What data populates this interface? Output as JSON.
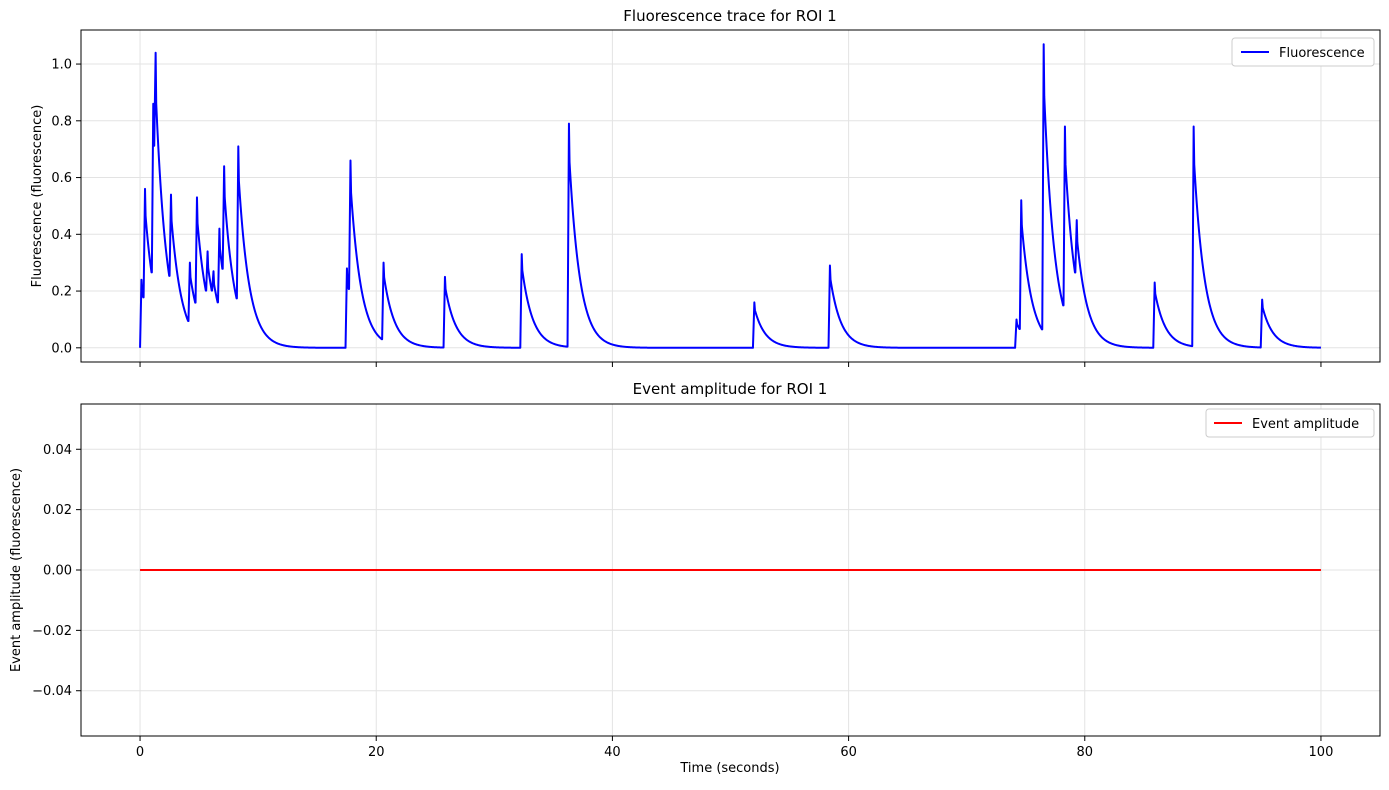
{
  "chart_data": [
    {
      "type": "line",
      "title": "Fluorescence trace for ROI 1",
      "ylabel": "Fluorescence (fluorescence)",
      "xlabel": "",
      "xlim": [
        -5,
        105
      ],
      "ylim": [
        -0.05,
        1.12
      ],
      "xticks": [
        0,
        20,
        40,
        60,
        80,
        100
      ],
      "xtick_labels_visible": false,
      "yticks": [
        0.0,
        0.2,
        0.4,
        0.6,
        0.8,
        1.0
      ],
      "ytick_labels": [
        "0.0",
        "0.2",
        "0.4",
        "0.6",
        "0.8",
        "1.0"
      ],
      "grid": true,
      "legend": "top-right",
      "decay_tau_seconds": 0.9,
      "series": [
        {
          "name": "Fluorescence",
          "color": "#0000ff",
          "events": [
            {
              "t": 0.0,
              "peak": 0.24
            },
            {
              "t": 0.3,
              "peak": 0.56
            },
            {
              "t": 1.0,
              "peak": 0.86
            },
            {
              "t": 1.2,
              "peak": 1.04
            },
            {
              "t": 2.5,
              "peak": 0.54
            },
            {
              "t": 4.1,
              "peak": 0.3
            },
            {
              "t": 4.7,
              "peak": 0.53
            },
            {
              "t": 5.6,
              "peak": 0.34
            },
            {
              "t": 6.1,
              "peak": 0.27
            },
            {
              "t": 6.6,
              "peak": 0.42
            },
            {
              "t": 7.0,
              "peak": 0.64
            },
            {
              "t": 8.2,
              "peak": 0.71
            },
            {
              "t": 17.4,
              "peak": 0.28
            },
            {
              "t": 17.7,
              "peak": 0.66
            },
            {
              "t": 20.5,
              "peak": 0.3
            },
            {
              "t": 25.7,
              "peak": 0.25
            },
            {
              "t": 32.2,
              "peak": 0.33
            },
            {
              "t": 36.2,
              "peak": 0.79
            },
            {
              "t": 51.9,
              "peak": 0.16
            },
            {
              "t": 58.3,
              "peak": 0.29
            },
            {
              "t": 74.1,
              "peak": 0.1
            },
            {
              "t": 74.5,
              "peak": 0.52
            },
            {
              "t": 76.4,
              "peak": 1.07
            },
            {
              "t": 78.2,
              "peak": 0.78
            },
            {
              "t": 79.2,
              "peak": 0.45
            },
            {
              "t": 85.8,
              "peak": 0.23
            },
            {
              "t": 89.1,
              "peak": 0.78
            },
            {
              "t": 94.9,
              "peak": 0.17
            }
          ],
          "t_end": 100
        }
      ]
    },
    {
      "type": "line",
      "title": "Event amplitude for ROI 1",
      "ylabel": "Event amplitude (fluorescence)",
      "xlabel": "Time (seconds)",
      "xlim": [
        -5,
        105
      ],
      "ylim": [
        -0.055,
        0.055
      ],
      "xticks": [
        0,
        20,
        40,
        60,
        80,
        100
      ],
      "xtick_labels": [
        "0",
        "20",
        "40",
        "60",
        "80",
        "100"
      ],
      "yticks": [
        -0.04,
        -0.02,
        0.0,
        0.02,
        0.04
      ],
      "ytick_labels": [
        "−0.04",
        "−0.02",
        "0.00",
        "0.02",
        "0.04"
      ],
      "grid": true,
      "legend": "top-right",
      "series": [
        {
          "name": "Event amplitude",
          "color": "#ff0000",
          "x": [
            0,
            100
          ],
          "y": [
            0,
            0
          ]
        }
      ]
    }
  ]
}
